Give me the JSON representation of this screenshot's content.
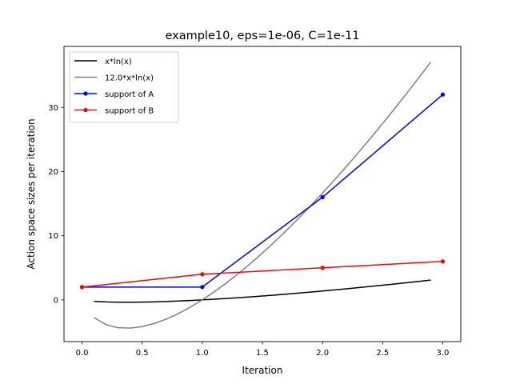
{
  "chart_data": {
    "type": "line",
    "title": "example10, eps=1e-06, C=1e-11",
    "xlabel": "Iteration",
    "ylabel": "Action space sizes per iteration",
    "xlim": [
      -0.15,
      3.15
    ],
    "ylim": [
      -6.5,
      39.5
    ],
    "x_ticks": [
      0.0,
      0.5,
      1.0,
      1.5,
      2.0,
      2.5,
      3.0
    ],
    "x_tick_labels": [
      "0.0",
      "0.5",
      "1.0",
      "1.5",
      "2.0",
      "2.5",
      "3.0"
    ],
    "y_ticks": [
      0,
      10,
      20,
      30
    ],
    "y_tick_labels": [
      "0",
      "10",
      "20",
      "30"
    ],
    "grid": false,
    "legend_position": "top-left",
    "series": [
      {
        "name": "x*ln(x)",
        "color": "#000000",
        "markers": false,
        "x": [
          0.1,
          0.2,
          0.3,
          0.4,
          0.5,
          0.6,
          0.7,
          0.8,
          0.9,
          1.0,
          1.1,
          1.2,
          1.3,
          1.4,
          1.5,
          1.6,
          1.7,
          1.8,
          1.9,
          2.0,
          2.1,
          2.2,
          2.3,
          2.4,
          2.5,
          2.6,
          2.7,
          2.8,
          2.9
        ],
        "y": [
          -0.23,
          -0.32,
          -0.36,
          -0.37,
          -0.35,
          -0.31,
          -0.25,
          -0.18,
          -0.09,
          0.0,
          0.1,
          0.22,
          0.34,
          0.47,
          0.61,
          0.75,
          0.9,
          1.06,
          1.22,
          1.39,
          1.56,
          1.73,
          1.92,
          2.1,
          2.29,
          2.48,
          2.68,
          2.88,
          3.09
        ]
      },
      {
        "name": "12.0*x*ln(x)",
        "color": "#808080",
        "markers": false,
        "x": [
          0.1,
          0.2,
          0.3,
          0.4,
          0.5,
          0.6,
          0.7,
          0.8,
          0.9,
          1.0,
          1.1,
          1.2,
          1.3,
          1.4,
          1.5,
          1.6,
          1.7,
          1.8,
          1.9,
          2.0,
          2.1,
          2.2,
          2.3,
          2.4,
          2.5,
          2.6,
          2.7,
          2.8,
          2.9
        ],
        "y": [
          -2.76,
          -3.86,
          -4.33,
          -4.4,
          -4.16,
          -3.68,
          -3.0,
          -2.14,
          -1.14,
          0.0,
          1.26,
          2.63,
          4.09,
          5.65,
          7.3,
          9.02,
          10.82,
          12.7,
          14.63,
          16.64,
          18.7,
          20.82,
          22.99,
          25.21,
          27.49,
          29.81,
          32.18,
          34.6,
          37.06
        ]
      },
      {
        "name": "support of A",
        "color": "#0000ff",
        "markers": true,
        "x": [
          0,
          1,
          2,
          3
        ],
        "y": [
          2,
          2,
          16,
          32
        ]
      },
      {
        "name": "support of B",
        "color": "#ff0000",
        "markers": true,
        "x": [
          0,
          1,
          2,
          3
        ],
        "y": [
          2,
          4,
          5,
          6
        ]
      }
    ]
  }
}
